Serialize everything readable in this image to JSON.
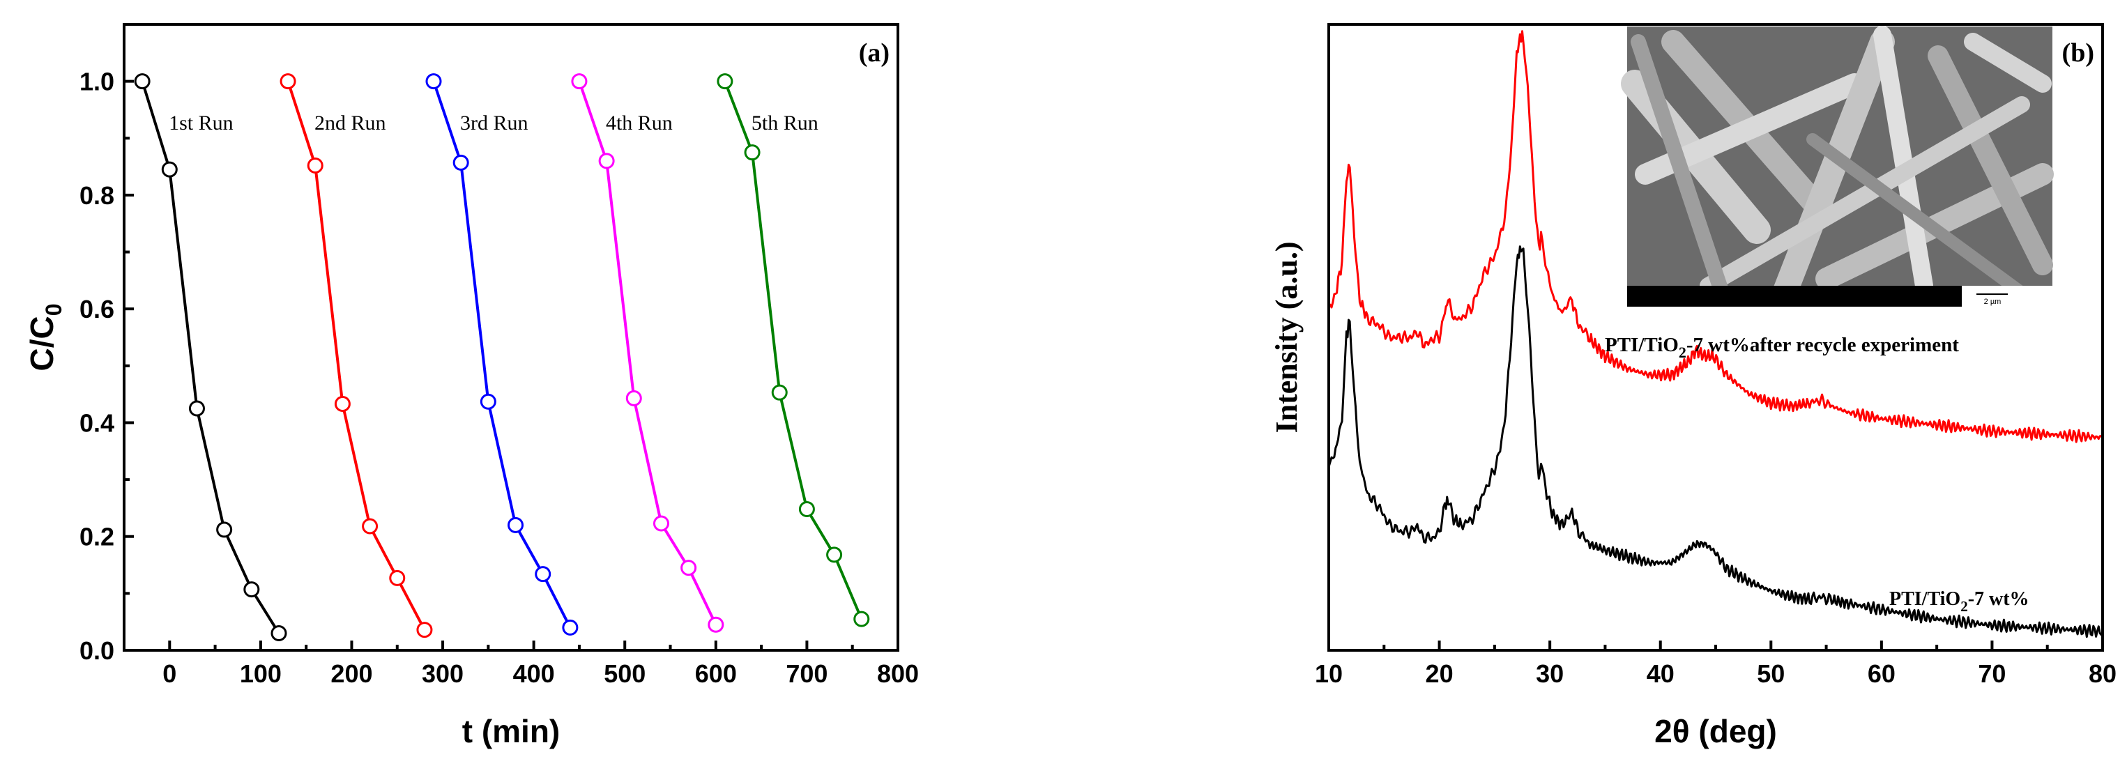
{
  "chart_data": [
    {
      "panel": "(a)",
      "type": "line",
      "xlabel": "t (min)",
      "ylabel_main": "C/C",
      "ylabel_sub": "0",
      "xlim": [
        -50,
        800
      ],
      "ylim": [
        0,
        1.1
      ],
      "xticks": [
        0,
        100,
        200,
        300,
        400,
        500,
        600,
        700,
        800
      ],
      "yticks": [
        0.0,
        0.2,
        0.4,
        0.6,
        0.8,
        1.0
      ],
      "ytick_labels": [
        "0.0",
        "0.2",
        "0.4",
        "0.6",
        "0.8",
        "1.0"
      ],
      "series": [
        {
          "name": "1st Run",
          "color": "#000000",
          "x": [
            -30,
            0,
            30,
            60,
            90,
            120
          ],
          "y": [
            1.0,
            0.845,
            0.425,
            0.212,
            0.107,
            0.03
          ]
        },
        {
          "name": "2nd Run",
          "color": "#ff0000",
          "x": [
            130,
            160,
            190,
            220,
            250,
            280
          ],
          "y": [
            1.0,
            0.852,
            0.433,
            0.218,
            0.127,
            0.036
          ]
        },
        {
          "name": "3rd Run",
          "color": "#0000ff",
          "x": [
            290,
            320,
            350,
            380,
            410,
            440
          ],
          "y": [
            1.0,
            0.857,
            0.437,
            0.22,
            0.134,
            0.04
          ]
        },
        {
          "name": "4th Run",
          "color": "#ff00ff",
          "x": [
            450,
            480,
            510,
            540,
            570,
            600
          ],
          "y": [
            1.0,
            0.86,
            0.443,
            0.223,
            0.145,
            0.045
          ]
        },
        {
          "name": "5th Run",
          "color": "#008000",
          "x": [
            610,
            640,
            670,
            700,
            730,
            760
          ],
          "y": [
            1.0,
            0.875,
            0.453,
            0.248,
            0.168,
            0.055
          ]
        }
      ]
    },
    {
      "panel": "(b)",
      "type": "line",
      "xlabel": "2θ (deg)",
      "ylabel": "Intensity (a.u.)",
      "xlim": [
        10,
        80
      ],
      "ylim": [
        0,
        1
      ],
      "xticks": [
        10,
        20,
        30,
        40,
        50,
        60,
        70,
        80
      ],
      "series": [
        {
          "name": "PTI/TiO2-7 wt%after recycle experiment",
          "color": "#ff0000",
          "label_main": "PTI/TiO",
          "label_sub": "2",
          "label_rest": "-7 wt%after recycle experiment",
          "x": [
            10,
            10.5,
            11.2,
            11.6,
            11.9,
            12.3,
            12.8,
            13.5,
            14.5,
            15.5,
            16.5,
            17.5,
            18,
            18.5,
            19,
            19.5,
            20,
            20.5,
            20.8,
            21.3,
            22,
            23,
            24,
            25,
            25.5,
            26,
            26.5,
            27,
            27.3,
            27.6,
            28,
            28.5,
            29,
            29.2,
            29.6,
            30.2,
            31,
            31.6,
            32,
            32.6,
            33.5,
            35,
            37,
            39,
            41,
            42.5,
            43.2,
            44,
            44.8,
            46,
            48,
            50,
            52,
            53.5,
            54.5,
            55.5,
            57,
            60,
            65,
            70,
            75,
            80
          ],
          "y": [
            0.55,
            0.56,
            0.62,
            0.75,
            0.78,
            0.66,
            0.56,
            0.53,
            0.52,
            0.5,
            0.5,
            0.5,
            0.51,
            0.49,
            0.49,
            0.5,
            0.5,
            0.54,
            0.56,
            0.53,
            0.53,
            0.55,
            0.6,
            0.63,
            0.66,
            0.7,
            0.8,
            0.95,
            0.98,
            0.98,
            0.9,
            0.75,
            0.64,
            0.66,
            0.62,
            0.57,
            0.54,
            0.55,
            0.56,
            0.52,
            0.5,
            0.47,
            0.45,
            0.44,
            0.44,
            0.46,
            0.48,
            0.47,
            0.47,
            0.44,
            0.41,
            0.395,
            0.39,
            0.395,
            0.4,
            0.39,
            0.38,
            0.37,
            0.36,
            0.35,
            0.345,
            0.34
          ]
        },
        {
          "name": "PTI/TiO2-7 wt%",
          "color": "#000000",
          "label_main": "PTI/TiO",
          "label_sub": "2",
          "label_rest": "-7 wt%",
          "x": [
            10,
            10.5,
            11.2,
            11.6,
            11.9,
            12.3,
            12.8,
            13.5,
            14.5,
            15.5,
            16.5,
            17.5,
            18,
            18.5,
            19,
            19.5,
            20,
            20.5,
            20.8,
            21.3,
            22,
            23,
            24,
            25,
            25.5,
            26,
            26.5,
            27,
            27.3,
            27.6,
            28,
            28.5,
            29,
            29.2,
            29.6,
            30.2,
            31,
            31.6,
            32,
            32.6,
            33.5,
            35,
            37,
            39,
            41,
            42.5,
            43.2,
            44,
            44.8,
            46,
            48,
            50,
            52,
            53.5,
            54.5,
            55.5,
            57,
            60,
            65,
            70,
            75,
            80
          ],
          "y": [
            0.3,
            0.31,
            0.37,
            0.5,
            0.53,
            0.41,
            0.3,
            0.25,
            0.23,
            0.2,
            0.19,
            0.19,
            0.2,
            0.18,
            0.18,
            0.18,
            0.19,
            0.23,
            0.24,
            0.21,
            0.2,
            0.21,
            0.25,
            0.29,
            0.32,
            0.38,
            0.5,
            0.62,
            0.64,
            0.64,
            0.55,
            0.4,
            0.27,
            0.3,
            0.26,
            0.22,
            0.2,
            0.21,
            0.22,
            0.19,
            0.17,
            0.16,
            0.15,
            0.14,
            0.14,
            0.16,
            0.17,
            0.17,
            0.16,
            0.13,
            0.11,
            0.095,
            0.085,
            0.082,
            0.085,
            0.08,
            0.075,
            0.065,
            0.05,
            0.04,
            0.035,
            0.03
          ]
        }
      ],
      "inset": {
        "description_free": true,
        "scale_label": "2 µm"
      }
    }
  ],
  "colors": {
    "axis": "#000000",
    "inset_bg": "#6a6a6a",
    "inset_bar": "#000000"
  }
}
